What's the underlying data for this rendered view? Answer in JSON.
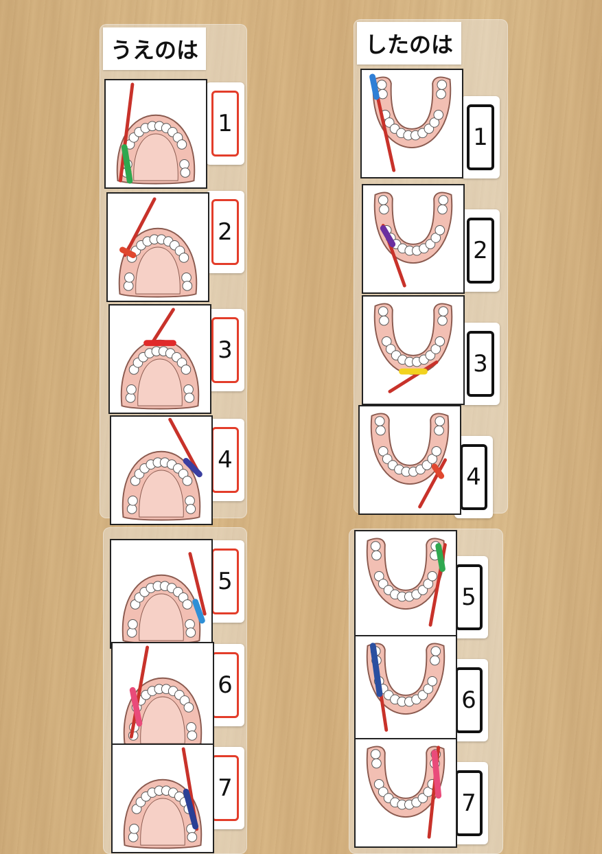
{
  "columns": [
    {
      "header": "うえのは",
      "jaw": "upper",
      "frame_color": "#e33d2a",
      "steps": [
        {
          "number": "1",
          "brush_color": "#2fa84f",
          "position": "front-left-outer"
        },
        {
          "number": "2",
          "brush_color": "#e0482f",
          "position": "left-upper"
        },
        {
          "number": "3",
          "brush_color": "#e02a2a",
          "position": "front-center"
        },
        {
          "number": "4",
          "brush_color": "#3b3fa0",
          "position": "right-outer"
        },
        {
          "number": "5",
          "brush_color": "#2f8fd6",
          "position": "right-back"
        },
        {
          "number": "6",
          "brush_color": "#e94b7a",
          "position": "left-inner"
        },
        {
          "number": "7",
          "brush_color": "#2a3f95",
          "position": "right-inner"
        }
      ]
    },
    {
      "header": "したのは",
      "jaw": "lower",
      "frame_color": "#111111",
      "steps": [
        {
          "number": "1",
          "brush_color": "#2f7fd6",
          "position": "left-top"
        },
        {
          "number": "2",
          "brush_color": "#6a2fa0",
          "position": "left-middle"
        },
        {
          "number": "3",
          "brush_color": "#f2d21f",
          "position": "front-center"
        },
        {
          "number": "4",
          "brush_color": "#e0482f",
          "position": "right-lower"
        },
        {
          "number": "5",
          "brush_color": "#2fa84f",
          "position": "right-top"
        },
        {
          "number": "6",
          "brush_color": "#2a4fa0",
          "position": "left-inner"
        },
        {
          "number": "7",
          "brush_color": "#e94b7a",
          "position": "right-inner"
        }
      ]
    }
  ],
  "colors": {
    "gum": "#f2bfb3",
    "gum_outline": "#8a5a4f",
    "tooth": "#ffffff",
    "handle": "#c8322a"
  }
}
